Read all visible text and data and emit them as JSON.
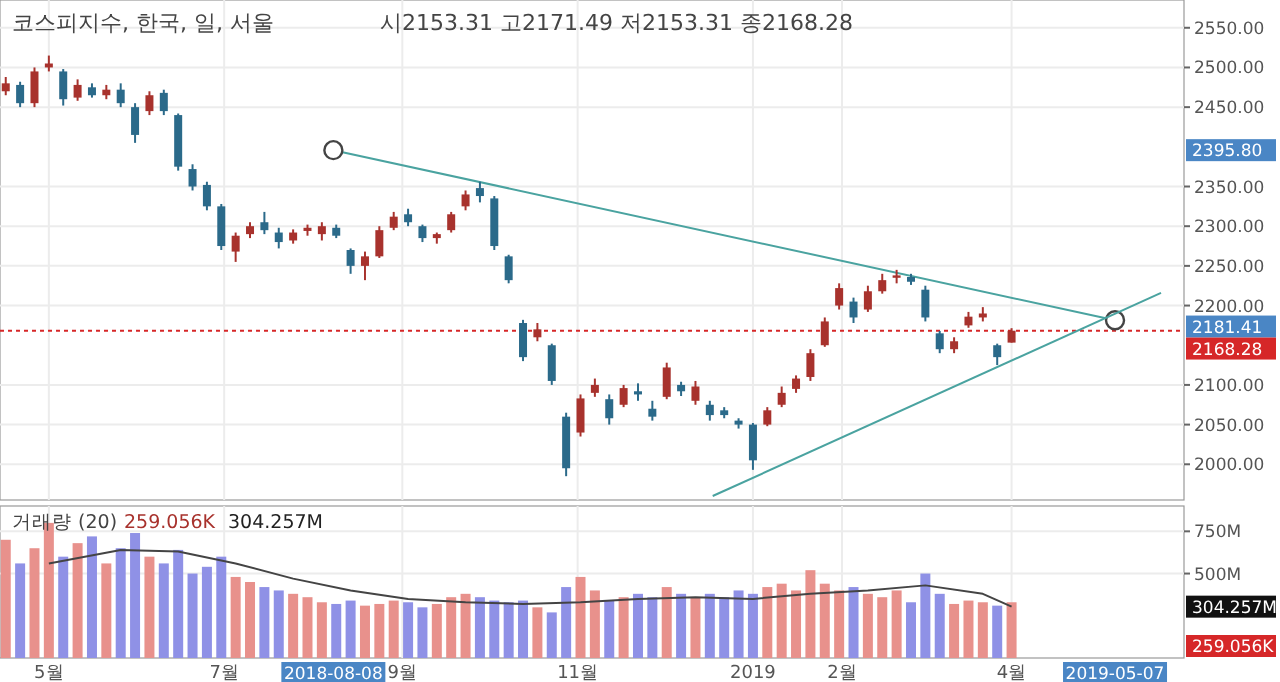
{
  "chart_data": [
    {
      "type": "candlestick",
      "title": "코스피지수, 한국, 일, 서울",
      "subtitle": "시2153.31 고2171.49 저2153.31 종2168.28",
      "x": [
        "2018-04-16",
        "2018-04-21",
        "2018-04-26",
        "2018-05-01",
        "2018-05-06",
        "2018-05-11",
        "2018-05-16",
        "2018-05-21",
        "2018-05-26",
        "2018-05-31",
        "2018-06-05",
        "2018-06-10",
        "2018-06-15",
        "2018-06-20",
        "2018-06-25",
        "2018-06-30",
        "2018-07-05",
        "2018-07-10",
        "2018-07-15",
        "2018-07-20",
        "2018-07-25",
        "2018-07-30",
        "2018-08-04",
        "2018-08-09",
        "2018-08-14",
        "2018-08-19",
        "2018-08-24",
        "2018-08-29",
        "2018-09-03",
        "2018-09-08",
        "2018-09-13",
        "2018-09-18",
        "2018-09-23",
        "2018-09-28",
        "2018-10-03",
        "2018-10-08",
        "2018-10-13",
        "2018-10-18",
        "2018-10-23",
        "2018-10-28",
        "2018-11-02",
        "2018-11-07",
        "2018-11-12",
        "2018-11-17",
        "2018-11-22",
        "2018-11-27",
        "2018-12-02",
        "2018-12-07",
        "2018-12-12",
        "2018-12-17",
        "2018-12-22",
        "2018-12-27",
        "2019-01-01",
        "2019-01-06",
        "2019-01-11",
        "2019-01-16",
        "2019-01-21",
        "2019-01-26",
        "2019-01-31",
        "2019-02-05",
        "2019-02-10",
        "2019-02-15",
        "2019-02-20",
        "2019-02-25",
        "2019-03-02",
        "2019-03-07",
        "2019-03-12",
        "2019-03-17",
        "2019-03-22",
        "2019-03-27",
        "2019-04-01"
      ],
      "ohlc": [
        [
          2470,
          2488,
          2465,
          2480
        ],
        [
          2478,
          2482,
          2450,
          2455
        ],
        [
          2455,
          2500,
          2450,
          2495
        ],
        [
          2500,
          2515,
          2495,
          2505
        ],
        [
          2495,
          2498,
          2452,
          2460
        ],
        [
          2462,
          2485,
          2458,
          2478
        ],
        [
          2475,
          2480,
          2462,
          2465
        ],
        [
          2465,
          2478,
          2460,
          2472
        ],
        [
          2472,
          2480,
          2450,
          2455
        ],
        [
          2450,
          2455,
          2405,
          2415
        ],
        [
          2445,
          2470,
          2440,
          2465
        ],
        [
          2468,
          2472,
          2440,
          2445
        ],
        [
          2440,
          2442,
          2370,
          2375
        ],
        [
          2372,
          2378,
          2345,
          2350
        ],
        [
          2352,
          2356,
          2320,
          2325
        ],
        [
          2325,
          2328,
          2270,
          2275
        ],
        [
          2268,
          2292,
          2255,
          2288
        ],
        [
          2290,
          2305,
          2285,
          2300
        ],
        [
          2305,
          2318,
          2290,
          2295
        ],
        [
          2292,
          2298,
          2272,
          2280
        ],
        [
          2282,
          2296,
          2278,
          2292
        ],
        [
          2294,
          2302,
          2288,
          2298
        ],
        [
          2290,
          2305,
          2282,
          2300
        ],
        [
          2298,
          2302,
          2285,
          2288
        ],
        [
          2270,
          2272,
          2240,
          2250
        ],
        [
          2250,
          2268,
          2232,
          2262
        ],
        [
          2262,
          2300,
          2260,
          2295
        ],
        [
          2298,
          2318,
          2295,
          2312
        ],
        [
          2315,
          2322,
          2300,
          2305
        ],
        [
          2300,
          2302,
          2280,
          2285
        ],
        [
          2285,
          2292,
          2278,
          2290
        ],
        [
          2295,
          2318,
          2292,
          2315
        ],
        [
          2325,
          2345,
          2320,
          2340
        ],
        [
          2348,
          2356,
          2330,
          2338
        ],
        [
          2335,
          2338,
          2270,
          2275
        ],
        [
          2262,
          2264,
          2228,
          2232
        ],
        [
          2178,
          2182,
          2130,
          2135
        ],
        [
          2160,
          2178,
          2155,
          2170
        ],
        [
          2150,
          2152,
          2100,
          2105
        ],
        [
          2060,
          2065,
          1985,
          1995
        ],
        [
          2040,
          2088,
          2035,
          2083
        ],
        [
          2090,
          2108,
          2085,
          2100
        ],
        [
          2082,
          2088,
          2050,
          2058
        ],
        [
          2075,
          2100,
          2072,
          2096
        ],
        [
          2092,
          2102,
          2080,
          2088
        ],
        [
          2070,
          2080,
          2055,
          2060
        ],
        [
          2085,
          2128,
          2082,
          2122
        ],
        [
          2100,
          2104,
          2086,
          2092
        ],
        [
          2080,
          2105,
          2075,
          2098
        ],
        [
          2075,
          2080,
          2055,
          2062
        ],
        [
          2068,
          2072,
          2058,
          2062
        ],
        [
          2055,
          2058,
          2045,
          2050
        ],
        [
          2050,
          2052,
          1993,
          2005
        ],
        [
          2050,
          2072,
          2048,
          2068
        ],
        [
          2075,
          2098,
          2072,
          2090
        ],
        [
          2095,
          2112,
          2090,
          2108
        ],
        [
          2110,
          2145,
          2105,
          2140
        ],
        [
          2150,
          2185,
          2148,
          2180
        ],
        [
          2200,
          2228,
          2195,
          2222
        ],
        [
          2205,
          2210,
          2178,
          2185
        ],
        [
          2195,
          2225,
          2192,
          2218
        ],
        [
          2218,
          2240,
          2215,
          2232
        ],
        [
          2235,
          2245,
          2228,
          2238
        ],
        [
          2236,
          2240,
          2226,
          2230
        ],
        [
          2220,
          2225,
          2180,
          2185
        ],
        [
          2165,
          2168,
          2140,
          2145
        ],
        [
          2145,
          2160,
          2140,
          2155
        ],
        [
          2175,
          2192,
          2172,
          2186
        ],
        [
          2185,
          2198,
          2180,
          2190
        ],
        [
          2150,
          2152,
          2125,
          2135
        ],
        [
          2153.31,
          2171.49,
          2153.31,
          2168.28
        ]
      ],
      "colors": [
        "#a8322d",
        "#2b6a8a",
        "#a8322d",
        "#a8322d",
        "#2b6a8a",
        "#a8322d",
        "#2b6a8a",
        "#a8322d",
        "#2b6a8a",
        "#2b6a8a",
        "#a8322d",
        "#2b6a8a",
        "#2b6a8a",
        "#2b6a8a",
        "#2b6a8a",
        "#2b6a8a",
        "#a8322d",
        "#a8322d",
        "#2b6a8a",
        "#2b6a8a",
        "#a8322d",
        "#a8322d",
        "#a8322d",
        "#2b6a8a",
        "#2b6a8a",
        "#a8322d",
        "#a8322d",
        "#a8322d",
        "#2b6a8a",
        "#2b6a8a",
        "#a8322d",
        "#a8322d",
        "#a8322d",
        "#2b6a8a",
        "#2b6a8a",
        "#2b6a8a",
        "#2b6a8a",
        "#a8322d",
        "#2b6a8a",
        "#2b6a8a",
        "#a8322d",
        "#a8322d",
        "#2b6a8a",
        "#a8322d",
        "#2b6a8a",
        "#2b6a8a",
        "#a8322d",
        "#2b6a8a",
        "#a8322d",
        "#2b6a8a",
        "#2b6a8a",
        "#2b6a8a",
        "#2b6a8a",
        "#a8322d",
        "#a8322d",
        "#a8322d",
        "#a8322d",
        "#a8322d",
        "#a8322d",
        "#2b6a8a",
        "#a8322d",
        "#a8322d",
        "#a8322d",
        "#2b6a8a",
        "#2b6a8a",
        "#2b6a8a",
        "#a8322d",
        "#a8322d",
        "#a8322d",
        "#2b6a8a",
        "#a8322d"
      ],
      "series": [
        {
          "type": "line",
          "x": [
            "2018-08-08",
            "2019-05-07"
          ],
          "values": [
            2395.8,
            2181.41
          ],
          "color": "#4aa3a0",
          "marker": "circle"
        },
        {
          "type": "line",
          "x": [
            "2018-12-18",
            "2019-05-23"
          ],
          "values": [
            1960,
            2216
          ],
          "color": "#4aa3a0"
        }
      ],
      "ref_lines": [
        {
          "axis": "y",
          "value": 2168.28,
          "label": "2168.28",
          "color": "#d62728",
          "line_style": "dotted"
        }
      ],
      "annotations": [
        "2395.80",
        "2181.41"
      ],
      "xlim": [
        "2018-04-14",
        "2019-05-31"
      ],
      "xticks": [
        {
          "value": "2018-05-01",
          "label": null
        },
        {
          "value": "2018-07-01",
          "label": null
        },
        {
          "value": "2018-09-01",
          "label": null
        },
        {
          "value": "2018-11-01",
          "label": null
        },
        {
          "value": "2019-01-01",
          "label": null
        },
        {
          "value": "2019-02-01",
          "label": null
        },
        {
          "value": "2019-04-01",
          "label": null
        }
      ],
      "ylim": [
        1955,
        2585
      ],
      "yticks": [
        {
          "value": 2000,
          "label": "2000.00"
        },
        {
          "value": 2050,
          "label": "2050.00"
        },
        {
          "value": 2100,
          "label": "2100.00"
        },
        {
          "value": 2200,
          "label": "2200.00"
        },
        {
          "value": 2250,
          "label": "2250.00"
        },
        {
          "value": 2300,
          "label": "2300.00"
        },
        {
          "value": 2350,
          "label": "2350.00"
        },
        {
          "value": 2450,
          "label": "2450.00"
        },
        {
          "value": 2500,
          "label": "2500.00"
        },
        {
          "value": 2550,
          "label": "2550.00"
        }
      ],
      "grid": true,
      "tick_labels": "y"
    },
    {
      "type": "bar",
      "title": "거래량 (20)",
      "x": [
        "2018-04-16",
        "2018-04-21",
        "2018-04-26",
        "2018-05-01",
        "2018-05-06",
        "2018-05-11",
        "2018-05-16",
        "2018-05-21",
        "2018-05-26",
        "2018-05-31",
        "2018-06-05",
        "2018-06-10",
        "2018-06-15",
        "2018-06-20",
        "2018-06-25",
        "2018-06-30",
        "2018-07-05",
        "2018-07-10",
        "2018-07-15",
        "2018-07-20",
        "2018-07-25",
        "2018-07-30",
        "2018-08-04",
        "2018-08-09",
        "2018-08-14",
        "2018-08-19",
        "2018-08-24",
        "2018-08-29",
        "2018-09-03",
        "2018-09-08",
        "2018-09-13",
        "2018-09-18",
        "2018-09-23",
        "2018-09-28",
        "2018-10-03",
        "2018-10-08",
        "2018-10-13",
        "2018-10-18",
        "2018-10-23",
        "2018-10-28",
        "2018-11-02",
        "2018-11-07",
        "2018-11-12",
        "2018-11-17",
        "2018-11-22",
        "2018-11-27",
        "2018-12-02",
        "2018-12-07",
        "2018-12-12",
        "2018-12-17",
        "2018-12-22",
        "2018-12-27",
        "2019-01-01",
        "2019-01-06",
        "2019-01-11",
        "2019-01-16",
        "2019-01-21",
        "2019-01-26",
        "2019-01-31",
        "2019-02-05",
        "2019-02-10",
        "2019-02-15",
        "2019-02-20",
        "2019-02-25",
        "2019-03-02",
        "2019-03-07",
        "2019-03-12",
        "2019-03-17",
        "2019-03-22",
        "2019-03-27",
        "2019-04-01"
      ],
      "series": [
        {
          "values": [
            700,
            560,
            650,
            800,
            600,
            680,
            720,
            560,
            650,
            740,
            600,
            560,
            640,
            500,
            540,
            600,
            480,
            450,
            420,
            400,
            380,
            360,
            330,
            320,
            340,
            310,
            320,
            340,
            330,
            300,
            320,
            360,
            380,
            360,
            340,
            330,
            340,
            300,
            270,
            420,
            480,
            400,
            340,
            360,
            380,
            360,
            420,
            380,
            360,
            380,
            360,
            400,
            380,
            420,
            440,
            400,
            520,
            440,
            400,
            420,
            380,
            360,
            400,
            330,
            500,
            380,
            320,
            340,
            330,
            310,
            330
          ],
          "colors": [
            "#e8918c",
            "#8f91e6",
            "#e8918c",
            "#e8918c",
            "#8f91e6",
            "#e8918c",
            "#8f91e6",
            "#e8918c",
            "#8f91e6",
            "#8f91e6",
            "#e8918c",
            "#8f91e6",
            "#8f91e6",
            "#8f91e6",
            "#8f91e6",
            "#8f91e6",
            "#e8918c",
            "#e8918c",
            "#8f91e6",
            "#8f91e6",
            "#e8918c",
            "#e8918c",
            "#e8918c",
            "#8f91e6",
            "#8f91e6",
            "#e8918c",
            "#e8918c",
            "#e8918c",
            "#8f91e6",
            "#8f91e6",
            "#e8918c",
            "#e8918c",
            "#e8918c",
            "#8f91e6",
            "#8f91e6",
            "#8f91e6",
            "#8f91e6",
            "#e8918c",
            "#8f91e6",
            "#8f91e6",
            "#e8918c",
            "#e8918c",
            "#8f91e6",
            "#e8918c",
            "#8f91e6",
            "#8f91e6",
            "#e8918c",
            "#8f91e6",
            "#e8918c",
            "#8f91e6",
            "#8f91e6",
            "#8f91e6",
            "#8f91e6",
            "#e8918c",
            "#e8918c",
            "#e8918c",
            "#e8918c",
            "#e8918c",
            "#e8918c",
            "#8f91e6",
            "#e8918c",
            "#e8918c",
            "#e8918c",
            "#8f91e6",
            "#8f91e6",
            "#8f91e6",
            "#e8918c",
            "#e8918c",
            "#e8918c",
            "#8f91e6",
            "#e8918c"
          ]
        },
        {
          "type": "line",
          "x": [
            "2018-05-01",
            "2018-05-26",
            "2018-06-15",
            "2018-07-05",
            "2018-07-25",
            "2018-08-14",
            "2018-09-03",
            "2018-09-23",
            "2018-10-13",
            "2018-11-02",
            "2018-11-22",
            "2018-12-12",
            "2019-01-01",
            "2019-01-21",
            "2019-02-10",
            "2019-03-02",
            "2019-03-22",
            "2019-04-01"
          ],
          "values": [
            560,
            640,
            630,
            560,
            470,
            400,
            350,
            330,
            320,
            330,
            350,
            360,
            350,
            380,
            400,
            430,
            380,
            304
          ],
          "color": "#444444"
        }
      ],
      "annotations": [
        "259.056K",
        "304.257M",
        "304.257M",
        "259.056K",
        "2018-08-08",
        "2019-05-07"
      ],
      "xlim": [
        "2018-04-14",
        "2019-05-31"
      ],
      "xticks": [
        {
          "value": "2018-05-01",
          "label": "5월"
        },
        {
          "value": "2018-07-01",
          "label": "7월"
        },
        {
          "value": "2018-09-01",
          "label": "9월"
        },
        {
          "value": "2018-11-01",
          "label": "11월"
        },
        {
          "value": "2019-01-01",
          "label": "2019"
        },
        {
          "value": "2019-02-01",
          "label": "2월"
        },
        {
          "value": "2019-04-01",
          "label": "4월"
        }
      ],
      "ylim": [
        0,
        900
      ],
      "yticks": [
        {
          "value": 500,
          "label": "500M"
        },
        {
          "value": 750,
          "label": "750M"
        }
      ],
      "grid": true
    }
  ]
}
